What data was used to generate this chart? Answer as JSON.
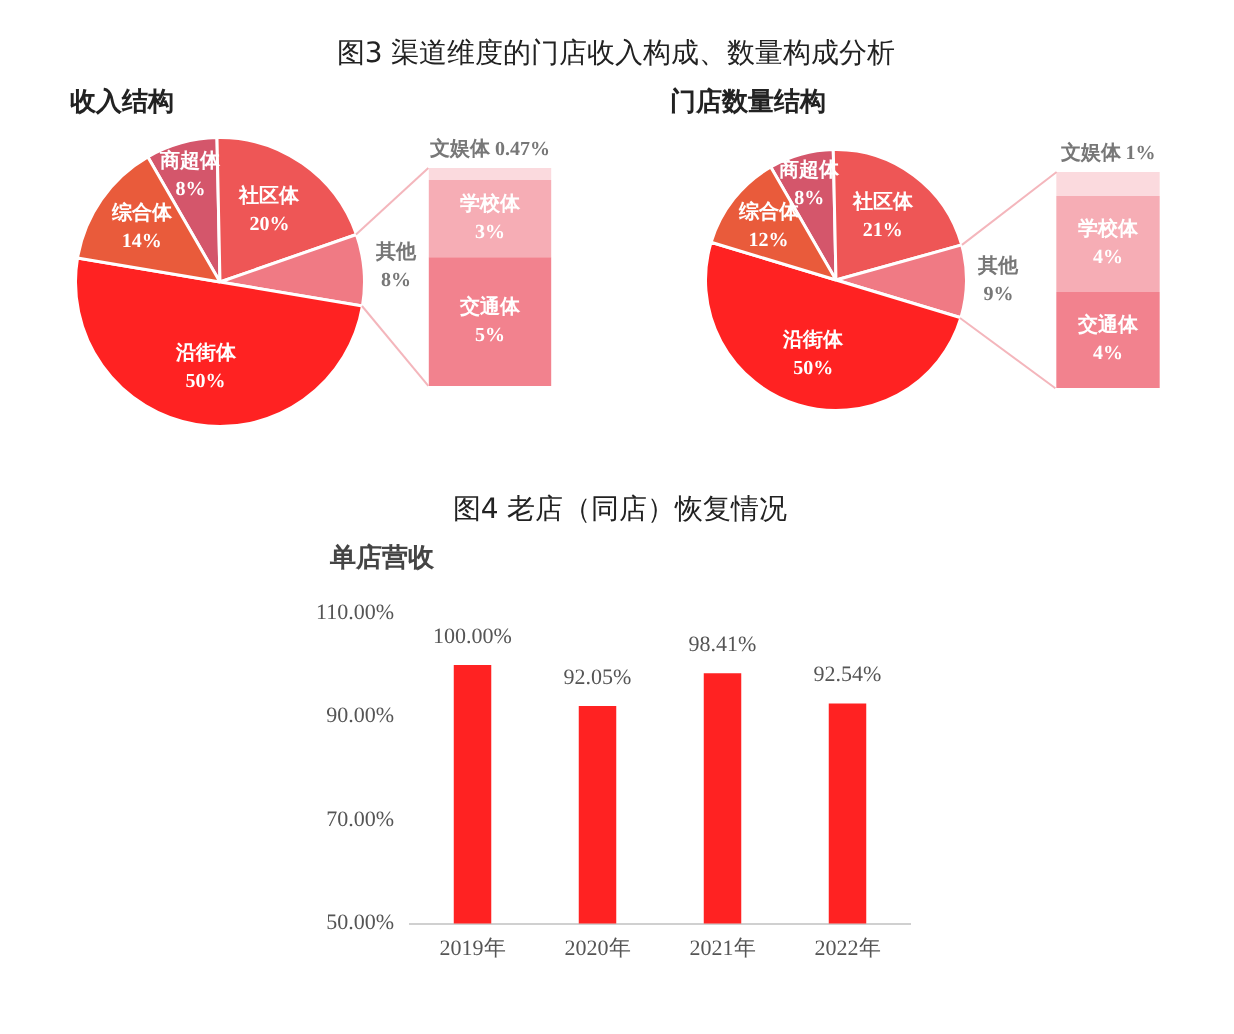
{
  "chart_data": [
    {
      "type": "pie",
      "title": "图3  渠道维度的门店收入构成、数量构成分析",
      "subtitle": "收入结构",
      "categories": [
        "商超体",
        "社区体",
        "其他",
        "沿街体",
        "综合体"
      ],
      "values": [
        8,
        20,
        8,
        50,
        14
      ],
      "value_labels": [
        "8%",
        "20%",
        "8%",
        "50%",
        "14%"
      ],
      "colors": [
        "#d4566b",
        "#ee5656",
        "#f07a84",
        "#ff2222",
        "#e95b3b"
      ]
    },
    {
      "type": "bar",
      "stacked": true,
      "categories": [
        null
      ],
      "series": [
        {
          "name": "交通体",
          "color": "#f2828e",
          "values": [
            5
          ],
          "value_labels": [
            "5%"
          ]
        },
        {
          "name": "学校体",
          "color": "#f6adb5",
          "values": [
            3
          ],
          "value_labels": [
            "3%"
          ]
        },
        {
          "name": "文娱体",
          "color": "#fbdade",
          "values": [
            0.47
          ],
          "value_labels": [
            "0.47%"
          ]
        }
      ]
    },
    {
      "type": "pie",
      "title": "门店数量结构",
      "categories": [
        "商超体",
        "社区体",
        "其他",
        "沿街体",
        "综合体"
      ],
      "values": [
        8,
        21,
        9,
        50,
        12
      ],
      "value_labels": [
        "8%",
        "21%",
        "9%",
        "50%",
        "12%"
      ],
      "colors": [
        "#d4566b",
        "#ee5656",
        "#f07a84",
        "#ff2222",
        "#e95b3b"
      ]
    },
    {
      "type": "bar",
      "stacked": true,
      "categories": [
        null
      ],
      "series": [
        {
          "name": "交通体",
          "color": "#f2828e",
          "values": [
            4
          ],
          "value_labels": [
            "4%"
          ]
        },
        {
          "name": "学校体",
          "color": "#f6adb5",
          "values": [
            4
          ],
          "value_labels": [
            "4%"
          ]
        },
        {
          "name": "文娱体",
          "color": "#fbdade",
          "values": [
            1
          ],
          "value_labels": [
            "1%"
          ]
        }
      ]
    },
    {
      "type": "bar",
      "title": "图4 老店（同店）恢复情况",
      "ylabel": "单店营收",
      "categories": [
        "2019年",
        "2020年",
        "2021年",
        "2022年"
      ],
      "values": [
        100,
        92.05,
        98.41,
        92.54
      ],
      "value_labels": [
        "100.00%",
        "92.05%",
        "98.41%",
        "92.54%"
      ],
      "color": "#ff2222",
      "ylim": [
        50,
        110
      ],
      "yticks": [
        {
          "value": 50,
          "label": "50.00%"
        },
        {
          "value": 70,
          "label": "70.00%"
        },
        {
          "value": 90,
          "label": "90.00%"
        },
        {
          "value": 110,
          "label": "110.00%"
        }
      ],
      "grid": false
    }
  ]
}
